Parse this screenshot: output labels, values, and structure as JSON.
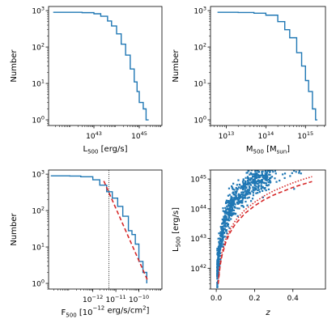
{
  "chart_data": [
    {
      "type": "line",
      "scale": {
        "x": "log",
        "y": "log"
      },
      "xlabel": {
        "base": "L",
        "sub": "500",
        "unit": " [erg/s]"
      },
      "ylabel": "Number",
      "xlim": [
        1e+41,
        1e+46
      ],
      "ylim": [
        0.7,
        1300
      ],
      "xticks": [
        {
          "value": 1e+43,
          "mantissa": "10",
          "exp": "43"
        },
        {
          "value": 1e+45,
          "mantissa": "10",
          "exp": "45"
        }
      ],
      "yticks": [
        {
          "value": 1,
          "mantissa": "10",
          "exp": "0"
        },
        {
          "value": 10,
          "mantissa": "10",
          "exp": "1"
        },
        {
          "value": 100,
          "mantissa": "10",
          "exp": "2"
        },
        {
          "value": 1000,
          "mantissa": "10",
          "exp": "3"
        }
      ],
      "series": [
        {
          "color": "#1f77b4",
          "style": "step",
          "x": [
            1.6e+41,
            1e+42,
            3e+42,
            1e+43,
            2e+43,
            4e+43,
            6e+43,
            1e+44,
            1.6e+44,
            2.5e+44,
            4e+44,
            6e+44,
            8e+44,
            1e+45,
            1.5e+45,
            2e+45,
            2.3e+45,
            2.6e+45
          ],
          "y": [
            900,
            900,
            880,
            820,
            700,
            520,
            380,
            230,
            120,
            60,
            25,
            11,
            6,
            3,
            2,
            1,
            1,
            1
          ]
        }
      ]
    },
    {
      "type": "line",
      "scale": {
        "x": "log",
        "y": "log"
      },
      "xlabel": {
        "base": "M",
        "sub": "500",
        "unit_pre": " [M",
        "unit_sub": "sun",
        "unit_post": "]"
      },
      "ylabel": "Number",
      "xlim": [
        4000000000000.0,
        3200000000000000.0
      ],
      "ylim": [
        0.7,
        1300
      ],
      "xticks": [
        {
          "value": 10000000000000.0,
          "mantissa": "10",
          "exp": "13"
        },
        {
          "value": 100000000000000.0,
          "mantissa": "10",
          "exp": "14"
        },
        {
          "value": 1000000000000000.0,
          "mantissa": "10",
          "exp": "15"
        }
      ],
      "yticks": [
        {
          "value": 1,
          "mantissa": "10",
          "exp": "0"
        },
        {
          "value": 10,
          "mantissa": "10",
          "exp": "1"
        },
        {
          "value": 100,
          "mantissa": "10",
          "exp": "2"
        },
        {
          "value": 1000,
          "mantissa": "10",
          "exp": "3"
        }
      ],
      "series": [
        {
          "color": "#1f77b4",
          "style": "step",
          "x": [
            6000000000000.0,
            20000000000000.0,
            50000000000000.0,
            100000000000000.0,
            200000000000000.0,
            300000000000000.0,
            400000000000000.0,
            600000000000000.0,
            800000000000000.0,
            1000000000000000.0,
            1200000000000000.0,
            1500000000000000.0,
            1800000000000000.0,
            2000000000000000.0
          ],
          "y": [
            900,
            890,
            850,
            750,
            500,
            300,
            180,
            70,
            30,
            12,
            6,
            2,
            1,
            1
          ]
        }
      ]
    },
    {
      "type": "line",
      "scale": {
        "x": "log",
        "y": "log"
      },
      "xlabel": {
        "base": "F",
        "sub": "500",
        "unit_pre": " [10",
        "unit_sup": "−12",
        "unit_post": " erg/s/cm",
        "unit_sup2": "2",
        "unit_end": "]"
      },
      "ylabel": "Number",
      "xlim": [
        1.2e-14,
        1e-09
      ],
      "ylim": [
        0.7,
        1300
      ],
      "xticks": [
        {
          "value": 1e-12,
          "mantissa": "10",
          "exp": "−12"
        },
        {
          "value": 1e-11,
          "mantissa": "10",
          "exp": "−11"
        },
        {
          "value": 1e-10,
          "mantissa": "10",
          "exp": "−10"
        }
      ],
      "yticks": [
        {
          "value": 1,
          "mantissa": "10",
          "exp": "0"
        },
        {
          "value": 10,
          "mantissa": "10",
          "exp": "1"
        },
        {
          "value": 100,
          "mantissa": "10",
          "exp": "2"
        },
        {
          "value": 1000,
          "mantissa": "10",
          "exp": "3"
        }
      ],
      "vline": {
        "x": 5e-12,
        "style": "dotted",
        "color": "#000000"
      },
      "series": [
        {
          "color": "#1f77b4",
          "style": "step",
          "x": [
            1.5e-14,
            1e-13,
            3e-13,
            1e-12,
            2e-12,
            4e-12,
            7e-12,
            1.2e-11,
            2e-11,
            3.5e-11,
            5e-11,
            7e-11,
            1e-10,
            1.5e-10,
            2.2e-10
          ],
          "y": [
            900,
            890,
            850,
            700,
            500,
            330,
            220,
            130,
            70,
            28,
            22,
            12,
            4,
            2,
            1
          ]
        },
        {
          "color": "#d62728",
          "style": "dashed",
          "x": [
            3e-12,
            2.4e-10
          ],
          "y": [
            650,
            1.2
          ]
        }
      ]
    },
    {
      "type": "scatter",
      "scale": {
        "x": "linear",
        "y": "log"
      },
      "xlabel": {
        "base": "z"
      },
      "ylabel": {
        "base": "L",
        "sub": "500",
        "unit": " [erg/s]"
      },
      "xlim": [
        -0.03,
        0.57
      ],
      "ylim": [
        2e+41,
        2e+45
      ],
      "xticks": [
        {
          "value": 0.0,
          "label": "0.0"
        },
        {
          "value": 0.2,
          "label": "0.2"
        },
        {
          "value": 0.4,
          "label": "0.4"
        }
      ],
      "yticks": [
        {
          "value": 1e+42,
          "mantissa": "10",
          "exp": "42"
        },
        {
          "value": 1e+43,
          "mantissa": "10",
          "exp": "43"
        },
        {
          "value": 1e+44,
          "mantissa": "10",
          "exp": "44"
        },
        {
          "value": 1e+45,
          "mantissa": "10",
          "exp": "45"
        }
      ],
      "series": [
        {
          "color": "#1f77b4",
          "style": "markers",
          "marker": "square",
          "n": 900,
          "z_range": [
            0.005,
            0.55
          ]
        },
        {
          "color": "#d62728",
          "style": "dashed",
          "x": [
            0.01,
            0.02,
            0.03,
            0.05,
            0.07,
            0.1,
            0.15,
            0.2,
            0.25,
            0.3,
            0.35,
            0.4,
            0.45,
            0.5
          ],
          "y": [
            3e+41,
            1.2e+42,
            2.7e+42,
            7.5e+42,
            1.5e+43,
            3.1e+43,
            7e+43,
            1.25e+44,
            2e+44,
            2.9e+44,
            3.9e+44,
            5.2e+44,
            6.6e+44,
            8.2e+44
          ]
        },
        {
          "color": "#d62728",
          "style": "dotted",
          "x": [
            0.01,
            0.02,
            0.03,
            0.05,
            0.07,
            0.1,
            0.15,
            0.2,
            0.25,
            0.3,
            0.35,
            0.4,
            0.45,
            0.5
          ],
          "y": [
            3.6e+41,
            1.5e+42,
            3.4e+42,
            9.5e+42,
            1.9e+43,
            4e+43,
            9.2e+43,
            1.65e+44,
            2.7e+44,
            4e+44,
            5.5e+44,
            7.4e+44,
            9.6e+44,
            1.2e+45
          ]
        }
      ]
    }
  ]
}
